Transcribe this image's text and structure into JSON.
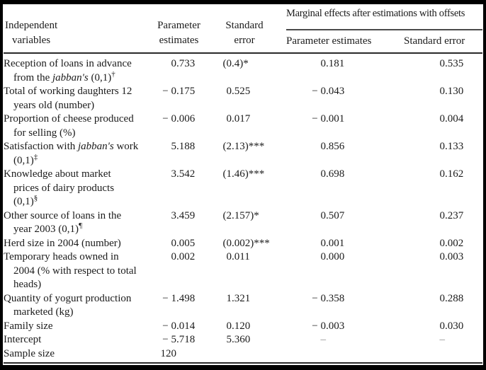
{
  "table": {
    "header": {
      "independent": {
        "line1": "Independent",
        "line2": "variables"
      },
      "parameter": {
        "line1": "Parameter",
        "line2": "estimates"
      },
      "standard": {
        "line1": "Standard",
        "line2": "error"
      },
      "marginal_spanner": "Marginal effects after estimations with offsets",
      "marginal_parameter": "Parameter estimates",
      "marginal_standard": "Standard error"
    },
    "rows": [
      {
        "label": [
          {
            "text": "Reception of loans in advance"
          },
          {
            "break": true
          },
          {
            "text": "from the "
          },
          {
            "text": "jabban's",
            "italic": true
          },
          {
            "text": " (0,1)"
          },
          {
            "text": "†",
            "sup": true
          }
        ],
        "parameter_estimate": "0.733",
        "standard_error": "(0.4)*",
        "marginal_parameter_estimate": "0.181",
        "marginal_standard_error": "0.535"
      },
      {
        "label": [
          {
            "text": "Total of working daughters 12"
          },
          {
            "break": true
          },
          {
            "text": "years old (number)"
          }
        ],
        "parameter_estimate": "− 0.175",
        "standard_error": "0.525",
        "marginal_parameter_estimate": "− 0.043",
        "marginal_standard_error": "0.130"
      },
      {
        "label": [
          {
            "text": "Proportion of cheese produced"
          },
          {
            "break": true
          },
          {
            "text": "for selling (%)"
          }
        ],
        "parameter_estimate": "− 0.006",
        "standard_error": "0.017",
        "marginal_parameter_estimate": "− 0.001",
        "marginal_standard_error": "0.004"
      },
      {
        "label": [
          {
            "text": "Satisfaction with "
          },
          {
            "text": "jabban's",
            "italic": true
          },
          {
            "text": " work"
          },
          {
            "break": true
          },
          {
            "text": "(0,1)"
          },
          {
            "text": "‡",
            "sup": true
          }
        ],
        "parameter_estimate": "5.188",
        "standard_error": "(2.13)***",
        "marginal_parameter_estimate": "0.856",
        "marginal_standard_error": "0.133"
      },
      {
        "label": [
          {
            "text": "Knowledge about market"
          },
          {
            "break": true
          },
          {
            "text": "prices of dairy products"
          },
          {
            "break": true
          },
          {
            "text": "(0,1)"
          },
          {
            "text": "§",
            "sup": true
          }
        ],
        "parameter_estimate": "3.542",
        "standard_error": "(1.46)***",
        "marginal_parameter_estimate": "0.698",
        "marginal_standard_error": "0.162"
      },
      {
        "label": [
          {
            "text": "Other source of loans in the"
          },
          {
            "break": true
          },
          {
            "text": "year 2003 (0,1)"
          },
          {
            "text": "¶",
            "sup": true
          }
        ],
        "parameter_estimate": "3.459",
        "standard_error": "(2.157)*",
        "marginal_parameter_estimate": "0.507",
        "marginal_standard_error": "0.237"
      },
      {
        "label": [
          {
            "text": "Herd size in 2004 (number)"
          }
        ],
        "parameter_estimate": "0.005",
        "standard_error": "(0.002)***",
        "marginal_parameter_estimate": "0.001",
        "marginal_standard_error": "0.002"
      },
      {
        "label": [
          {
            "text": "Temporary heads owned in"
          },
          {
            "break": true
          },
          {
            "text": "2004 (% with respect to total"
          },
          {
            "break": true
          },
          {
            "text": "heads)"
          }
        ],
        "parameter_estimate": "0.002",
        "standard_error": "0.011",
        "marginal_parameter_estimate": "0.000",
        "marginal_standard_error": "0.003"
      },
      {
        "label": [
          {
            "text": "Quantity of yogurt production"
          },
          {
            "break": true
          },
          {
            "text": "marketed (kg)"
          }
        ],
        "parameter_estimate": "− 1.498",
        "standard_error": "1.321",
        "marginal_parameter_estimate": "− 0.358",
        "marginal_standard_error": "0.288"
      },
      {
        "label": [
          {
            "text": "Family size"
          }
        ],
        "parameter_estimate": "− 0.014",
        "standard_error": "0.120",
        "marginal_parameter_estimate": "− 0.003",
        "marginal_standard_error": "0.030"
      },
      {
        "label": [
          {
            "text": "Intercept"
          }
        ],
        "parameter_estimate": "− 5.718",
        "standard_error": "5.360",
        "marginal_parameter_estimate": "–",
        "marginal_standard_error": "–"
      },
      {
        "label": [
          {
            "text": "Sample size"
          }
        ],
        "parameter_estimate": "120",
        "standard_error": "",
        "marginal_parameter_estimate": "",
        "marginal_standard_error": ""
      }
    ]
  }
}
